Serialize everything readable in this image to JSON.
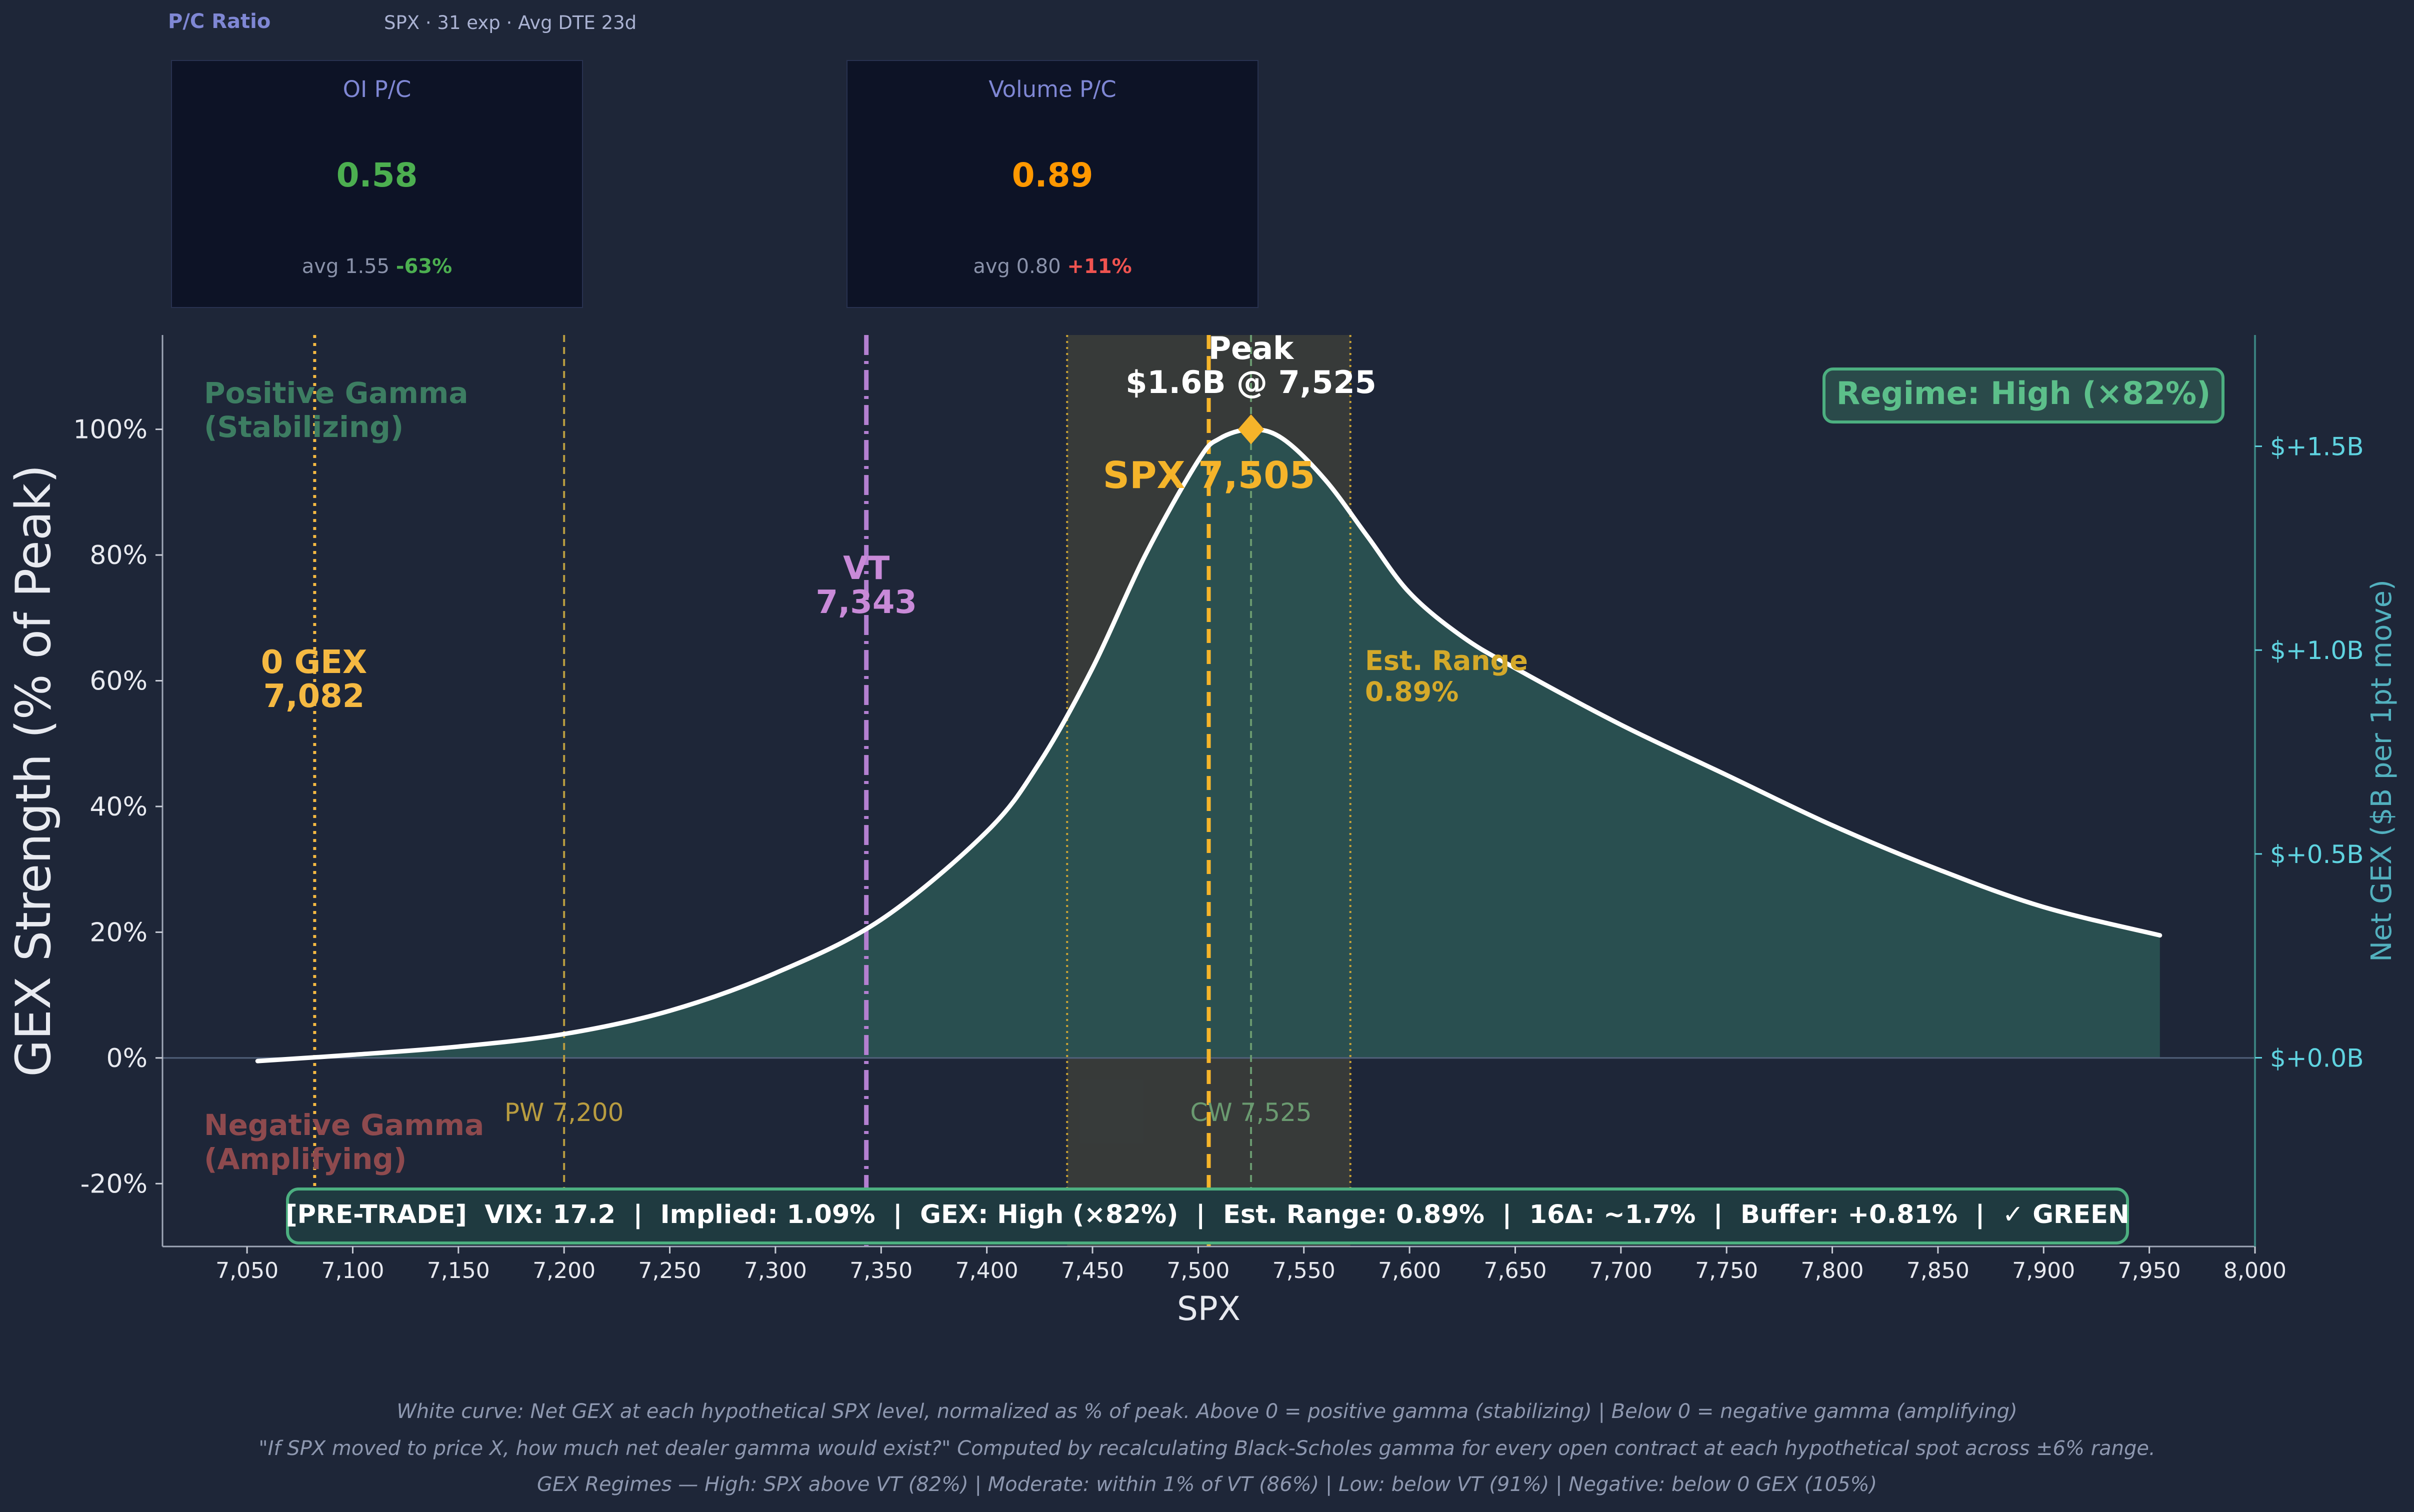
{
  "header": {
    "title": "P/C Ratio",
    "subtitle": "SPX · 31 exp · Avg DTE 23d"
  },
  "pc_cards": [
    {
      "label": "OI P/C",
      "value": "0.58",
      "value_color": "#4caf50",
      "avg_text": "avg 1.55",
      "change": "-63%",
      "change_color": "#4caf50"
    },
    {
      "label": "Volume P/C",
      "value": "0.89",
      "value_color": "#ff9800",
      "avg_text": "avg 0.80",
      "change": "+11%",
      "change_color": "#ef5350"
    }
  ],
  "chart_data": {
    "type": "area",
    "xlabel": "SPX",
    "ylabel": "GEX Strength (% of Peak)",
    "y2label": "Net GEX ($B per 1pt move)",
    "xlim": [
      7010,
      8000
    ],
    "ylim": [
      -30,
      115
    ],
    "y2lim": [
      -0.463,
      1.773
    ],
    "x_ticks": [
      7050,
      7100,
      7150,
      7200,
      7250,
      7300,
      7350,
      7400,
      7450,
      7500,
      7550,
      7600,
      7650,
      7700,
      7750,
      7800,
      7850,
      7900,
      7950,
      8000
    ],
    "x_tick_labels": [
      "7,050",
      "7,100",
      "7,150",
      "7,200",
      "7,250",
      "7,300",
      "7,350",
      "7,400",
      "7,450",
      "7,500",
      "7,550",
      "7,600",
      "7,650",
      "7,700",
      "7,750",
      "7,800",
      "7,850",
      "7,900",
      "7,950",
      "8,000"
    ],
    "y_ticks": [
      -20,
      0,
      20,
      40,
      60,
      80,
      100
    ],
    "y_tick_labels": [
      "-20%",
      "0%",
      "20%",
      "40%",
      "60%",
      "80%",
      "100%"
    ],
    "y2_ticks": [
      0,
      0.5,
      1.0,
      1.5
    ],
    "y2_tick_labels": [
      "$+0.0B",
      "$+0.5B",
      "$+1.0B",
      "$+1.5B"
    ],
    "series": [
      {
        "x": [
          7055,
          7100,
          7150,
          7200,
          7250,
          7300,
          7350,
          7400,
          7425,
          7450,
          7475,
          7500,
          7510,
          7525,
          7540,
          7560,
          7580,
          7600,
          7625,
          7650,
          7700,
          7750,
          7800,
          7850,
          7900,
          7955
        ],
        "y": [
          -0.5,
          0.5,
          1.8,
          3.8,
          7.5,
          13.5,
          22,
          36,
          47,
          62,
          80,
          95,
          98.5,
          100,
          98.5,
          92,
          83,
          74,
          67,
          62,
          53,
          45,
          37,
          30,
          24,
          19.5
        ]
      }
    ],
    "zero_gex": {
      "x": 7082,
      "label": "0 GEX",
      "value": "7,082"
    },
    "vt": {
      "x": 7343,
      "label": "VT",
      "value": "7,343"
    },
    "put_wall": {
      "x": 7200,
      "label": "PW 7,200"
    },
    "call_wall": {
      "x": 7525,
      "label": "CW 7,525"
    },
    "spx": {
      "x": 7505,
      "label": "SPX 7,505"
    },
    "peak": {
      "x": 7525,
      "y": 100,
      "label_line1": "Peak",
      "label_line2": "$1.6B @ 7,525"
    },
    "est_range": {
      "x0": 7438,
      "x1": 7572,
      "label_line1": "Est. Range",
      "label_line2": "0.89%"
    },
    "regime_badge": "Regime: High (×82%)",
    "positive_label": [
      "Positive Gamma",
      "(Stabilizing)"
    ],
    "negative_label": [
      "Negative Gamma",
      "(Amplifying)"
    ],
    "pretrade": "[PRE-TRADE]  VIX: 17.2  |  Implied: 1.09%  |  GEX: High (×82%)  |  Est. Range: 0.89%  |  16Δ: ~1.7%  |  Buffer: +0.81%  |  ✓ GREEN",
    "colors": {
      "curve": "#ffffff",
      "fill": "#2a5352",
      "zero_gex": "#f5b942",
      "vt": "#b37fd0",
      "spx": "#f5b42a",
      "peak": "#f5b42a",
      "put_wall": "#b89c40",
      "call_wall": "#6a9a70",
      "range_fill": "#3a3d3a",
      "range_line": "#c9a234",
      "positive": "#3d7d62",
      "negative": "#8e4a4e",
      "right_axis": "#5fd3e0",
      "badge": "#4caf80"
    }
  },
  "footnotes": [
    "White curve: Net GEX at each hypothetical SPX level, normalized as % of peak.  Above 0 = positive gamma (stabilizing)  |  Below 0 = negative gamma (amplifying)",
    "\"If SPX moved to price X, how much net dealer gamma would exist?\" Computed by recalculating Black-Scholes gamma for every open contract at each hypothetical spot across ±6% range.",
    "GEX Regimes — High: SPX above VT (82%)  |  Moderate: within 1% of VT (86%)  |  Low: below VT (91%)  |  Negative: below 0 GEX (105%)"
  ]
}
